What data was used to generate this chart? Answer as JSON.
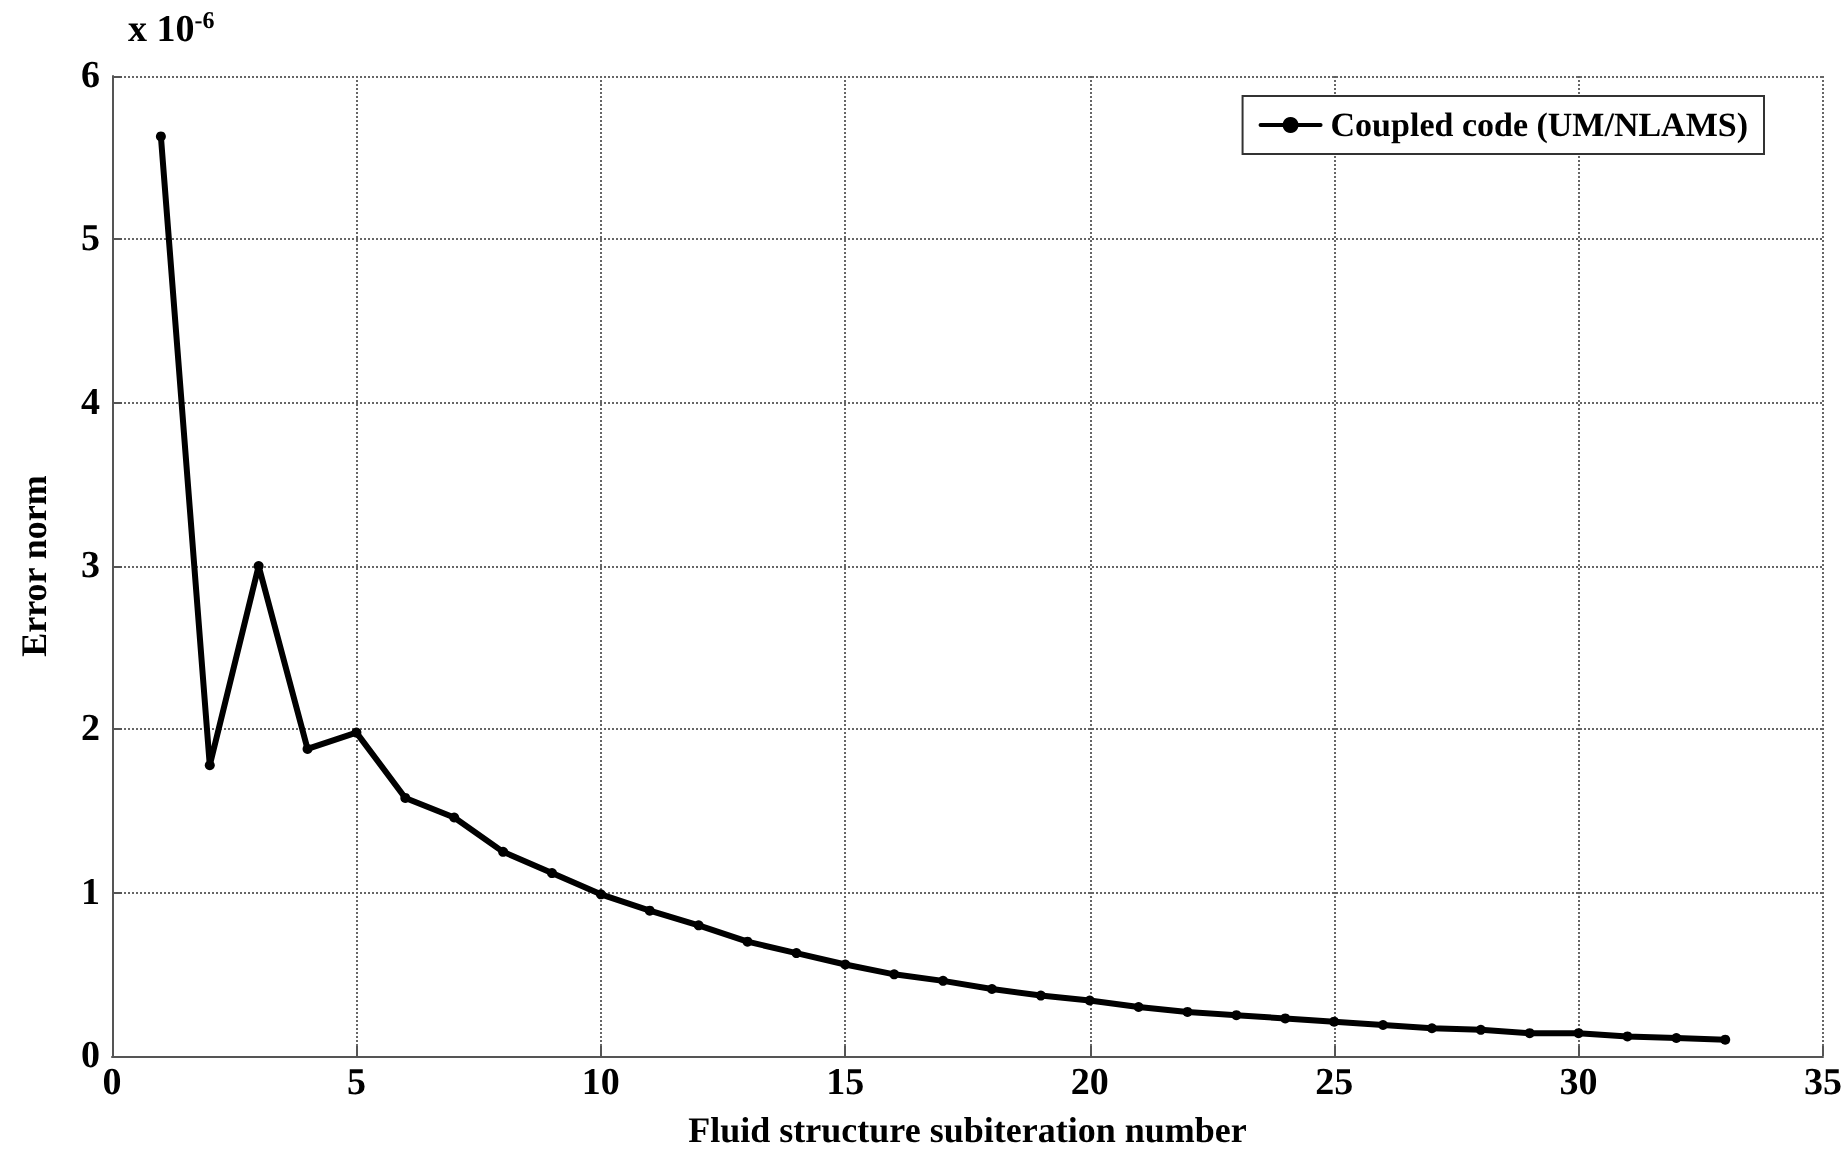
{
  "chart_data": {
    "type": "line",
    "xlabel": "Fluid structure subiteration number",
    "ylabel": "Error norm",
    "annotations": [
      "x 10$^{-6}$"
    ],
    "x": [
      1,
      2,
      3,
      4,
      5,
      6,
      7,
      8,
      9,
      10,
      11,
      12,
      13,
      14,
      15,
      16,
      17,
      18,
      19,
      20,
      21,
      22,
      23,
      24,
      25,
      26,
      27,
      28,
      29,
      30,
      31,
      32,
      33
    ],
    "series": [
      {
        "name": "Coupled code (UM/NLAMS)",
        "color": "#000000",
        "values": [
          5.63,
          1.78,
          3.0,
          1.88,
          1.98,
          1.58,
          1.46,
          1.25,
          1.12,
          0.99,
          0.89,
          0.8,
          0.7,
          0.63,
          0.56,
          0.5,
          0.46,
          0.41,
          0.37,
          0.34,
          0.3,
          0.27,
          0.25,
          0.23,
          0.21,
          0.19,
          0.17,
          0.16,
          0.14,
          0.14,
          0.12,
          0.11,
          0.1
        ]
      }
    ],
    "xlim": [
      0,
      35
    ],
    "xticks": [
      0,
      5,
      10,
      15,
      20,
      25,
      30,
      35
    ],
    "ylim": [
      0,
      6
    ],
    "yticks": [
      0,
      1,
      2,
      3,
      4,
      5,
      6
    ],
    "grid": true,
    "legend": "top right",
    "marker": "circle",
    "line_style": "solid"
  }
}
